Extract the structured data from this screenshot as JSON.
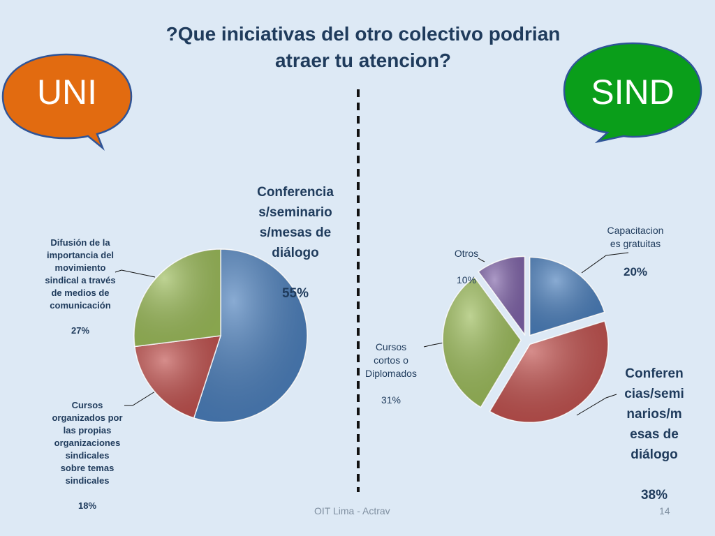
{
  "title": "?Que iniciativas del otro colectivo podrian atraer tu atencion?",
  "bubbles": {
    "left": {
      "text": "UNI",
      "color": "#e26b10"
    },
    "right": {
      "text": "SIND",
      "color": "#0a9e1a"
    }
  },
  "footer": {
    "source": "OIT Lima - Actrav",
    "page": "14"
  },
  "chart_data": [
    {
      "type": "pie",
      "title": "",
      "slices": [
        {
          "label": "Conferencia\ns/seminario\ns/mesas de\ndiálogo",
          "value": 55,
          "value_label": "55%",
          "color": "#4a7ebb"
        },
        {
          "label": "Cursos\norganizados por\nlas propias\norganizaciones\nsindicales\nsobre temas\nsindicales",
          "value": 18,
          "value_label": "18%",
          "color": "#c0504d"
        },
        {
          "label": "Difusión de la\nimportancia del\nmovimiento\nsindical a través\nde medios de\ncomunicación",
          "value": 27,
          "value_label": "27%",
          "color": "#9bbb59"
        }
      ]
    },
    {
      "type": "pie",
      "title": "",
      "exploded": true,
      "slices": [
        {
          "label": "Capacitacion\nes gratuitas",
          "value": 20,
          "value_label": "20%",
          "color": "#4a7ebb"
        },
        {
          "label": "Conferen\ncias/semi\nnarios/m\nesas de\ndiálogo",
          "value": 38,
          "value_label": "38%",
          "color": "#c0504d"
        },
        {
          "label": "Cursos\ncortos o\nDiplomados",
          "value": 31,
          "value_label": "31%",
          "color": "#9bbb59"
        },
        {
          "label": "Otros",
          "value": 10,
          "value_label": "10%",
          "color": "#7f63a8"
        }
      ]
    }
  ]
}
